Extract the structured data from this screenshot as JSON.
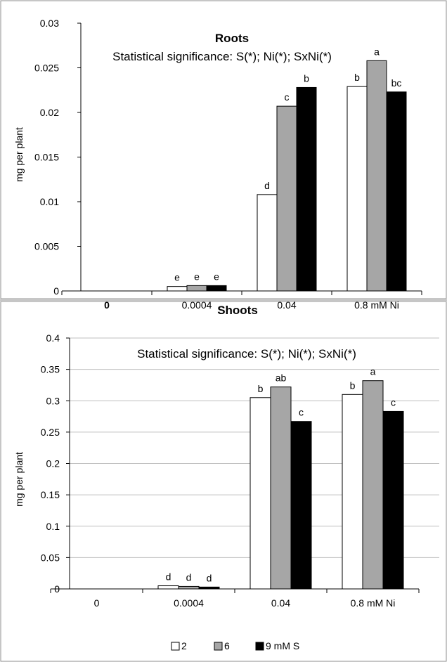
{
  "colors": {
    "series_2": "#ffffff",
    "series_6": "#a6a6a6",
    "series_9": "#000000",
    "axis": "#000000",
    "grid": "#bfbfbf"
  },
  "chart_data": [
    {
      "type": "bar",
      "title": "Roots",
      "subtitle": "Statistical significance: S(*); Ni(*); SxNi(*)",
      "ylabel": "mg per plant",
      "ylim": [
        0,
        0.03
      ],
      "yticks": [
        "0",
        "0.005",
        "0.01",
        "0.015",
        "0.02",
        "0.025",
        "0.03"
      ],
      "grid": false,
      "categories": [
        "0",
        "0.0004",
        "0.04",
        "0.8 mM Ni"
      ],
      "series": [
        {
          "name": "2",
          "values": [
            0,
            0.0005,
            0.0108,
            0.0229
          ],
          "labels": [
            "",
            "e",
            "d",
            "b"
          ]
        },
        {
          "name": "6",
          "values": [
            0,
            0.0006,
            0.0207,
            0.0258
          ],
          "labels": [
            "",
            "e",
            "c",
            "a"
          ]
        },
        {
          "name": "9 mM S",
          "values": [
            0,
            0.0006,
            0.0228,
            0.0223
          ],
          "labels": [
            "",
            "e",
            "b",
            "bc"
          ]
        }
      ]
    },
    {
      "type": "bar",
      "title": "Shoots",
      "subtitle": "Statistical significance: S(*); Ni(*); SxNi(*)",
      "ylabel": "mg per  plant",
      "ylim": [
        0,
        0.4
      ],
      "yticks": [
        "0",
        "0.05",
        "0.1",
        "0.15",
        "0.2",
        "0.25",
        "0.3",
        "0.35",
        "0.4"
      ],
      "grid": true,
      "legend_position": "bottom",
      "categories": [
        "0",
        "0.0004",
        "0.04",
        "0.8 mM Ni"
      ],
      "series": [
        {
          "name": "2",
          "values": [
            0,
            0.005,
            0.305,
            0.31
          ],
          "labels": [
            "",
            "d",
            "b",
            "b"
          ]
        },
        {
          "name": "6",
          "values": [
            0,
            0.004,
            0.322,
            0.332
          ],
          "labels": [
            "",
            "d",
            "ab",
            "a"
          ]
        },
        {
          "name": "9 mM S",
          "values": [
            0,
            0.003,
            0.267,
            0.283
          ],
          "labels": [
            "",
            "d",
            "c",
            "c"
          ]
        }
      ]
    }
  ]
}
